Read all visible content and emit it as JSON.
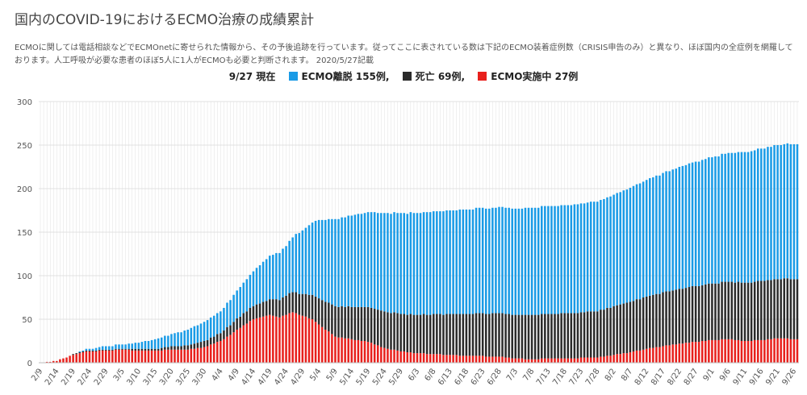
{
  "title": "国内のCOVID-19におけるECMO治療の成績累計",
  "description": "ECMOに関しては電話相談などでECMOnetに寄せられた情報から、その予後追跡を行っています。従ってここに表されている数は下記のECMO装着症例数（CRISIS申告のみ）と異なり、ほぼ国内の全症例を網羅しております。人工呼吸が必要な患者のほぼ5人に1人がECMOも必要と判断されます。 2020/5/27記載",
  "legend": {
    "date": "9/27 現在",
    "items": [
      {
        "label": "ECMO離脱 155例,",
        "color": "#1a9be6"
      },
      {
        "label": "死亡 69例,",
        "color": "#2b2b2b"
      },
      {
        "label": "ECMO実施中 27例",
        "color": "#e8201c"
      }
    ]
  },
  "colors": {
    "weaned": "#1a9be6",
    "death": "#2b2b2b",
    "ongoing": "#e8201c",
    "grid": "#e0e0e0",
    "axis": "#bdbdbd"
  },
  "chart_data": {
    "type": "bar",
    "stacked": true,
    "ylim": [
      0,
      300
    ],
    "yticks": [
      0,
      50,
      100,
      150,
      200,
      250,
      300
    ],
    "grid": true,
    "x_start_date": "2020-02-09",
    "x_end_date": "2020-09-27",
    "xtick_labels": [
      "2/9",
      "2/14",
      "2/19",
      "2/24",
      "2/29",
      "3/5",
      "3/10",
      "3/15",
      "3/20",
      "3/25",
      "3/30",
      "4/4",
      "4/9",
      "4/14",
      "4/19",
      "4/24",
      "4/29",
      "5/4",
      "5/9",
      "5/14",
      "5/19",
      "5/24",
      "5/29",
      "6/3",
      "6/8",
      "6/13",
      "6/18",
      "6/23",
      "6/28",
      "7/3",
      "7/8",
      "7/13",
      "7/18",
      "7/23",
      "7/28",
      "8/2",
      "8/7",
      "8/12",
      "8/17",
      "8/22",
      "8/27",
      "9/1",
      "9/6",
      "9/11",
      "9/16",
      "9/21",
      "9/26"
    ],
    "series_keypoints": [
      {
        "name": "ECMO実施中",
        "color": "#e8201c",
        "points": [
          [
            "2020-02-09",
            0
          ],
          [
            "2020-02-12",
            1
          ],
          [
            "2020-02-14",
            2
          ],
          [
            "2020-02-16",
            5
          ],
          [
            "2020-02-19",
            9
          ],
          [
            "2020-02-22",
            12
          ],
          [
            "2020-02-24",
            13
          ],
          [
            "2020-02-29",
            14
          ],
          [
            "2020-03-05",
            15
          ],
          [
            "2020-03-10",
            14
          ],
          [
            "2020-03-15",
            14
          ],
          [
            "2020-03-20",
            15
          ],
          [
            "2020-03-25",
            15
          ],
          [
            "2020-03-30",
            18
          ],
          [
            "2020-04-04",
            25
          ],
          [
            "2020-04-07",
            32
          ],
          [
            "2020-04-09",
            38
          ],
          [
            "2020-04-14",
            50
          ],
          [
            "2020-04-19",
            55
          ],
          [
            "2020-04-22",
            52
          ],
          [
            "2020-04-26",
            58
          ],
          [
            "2020-04-29",
            54
          ],
          [
            "2020-05-02",
            50
          ],
          [
            "2020-05-04",
            44
          ],
          [
            "2020-05-09",
            30
          ],
          [
            "2020-05-14",
            27
          ],
          [
            "2020-05-19",
            24
          ],
          [
            "2020-05-24",
            17
          ],
          [
            "2020-05-29",
            13
          ],
          [
            "2020-06-03",
            11
          ],
          [
            "2020-06-08",
            10
          ],
          [
            "2020-06-13",
            9
          ],
          [
            "2020-06-18",
            8
          ],
          [
            "2020-06-28",
            7
          ],
          [
            "2020-07-03",
            5
          ],
          [
            "2020-07-08",
            4
          ],
          [
            "2020-07-13",
            5
          ],
          [
            "2020-07-18",
            5
          ],
          [
            "2020-07-28",
            6
          ],
          [
            "2020-08-02",
            9
          ],
          [
            "2020-08-07",
            12
          ],
          [
            "2020-08-12",
            16
          ],
          [
            "2020-08-17",
            19
          ],
          [
            "2020-08-22",
            22
          ],
          [
            "2020-08-27",
            24
          ],
          [
            "2020-09-01",
            26
          ],
          [
            "2020-09-06",
            27
          ],
          [
            "2020-09-11",
            25
          ],
          [
            "2020-09-16",
            26
          ],
          [
            "2020-09-21",
            28
          ],
          [
            "2020-09-27",
            27
          ]
        ]
      },
      {
        "name": "死亡",
        "color": "#2b2b2b",
        "points": [
          [
            "2020-02-09",
            0
          ],
          [
            "2020-02-29",
            1
          ],
          [
            "2020-03-15",
            2
          ],
          [
            "2020-03-25",
            5
          ],
          [
            "2020-03-30",
            7
          ],
          [
            "2020-04-04",
            9
          ],
          [
            "2020-04-09",
            13
          ],
          [
            "2020-04-14",
            15
          ],
          [
            "2020-04-19",
            18
          ],
          [
            "2020-04-24",
            22
          ],
          [
            "2020-04-29",
            25
          ],
          [
            "2020-05-04",
            30
          ],
          [
            "2020-05-09",
            35
          ],
          [
            "2020-05-14",
            37
          ],
          [
            "2020-05-19",
            40
          ],
          [
            "2020-05-24",
            42
          ],
          [
            "2020-05-29",
            43
          ],
          [
            "2020-06-03",
            44
          ],
          [
            "2020-06-13",
            47
          ],
          [
            "2020-06-28",
            50
          ],
          [
            "2020-07-13",
            51
          ],
          [
            "2020-07-28",
            53
          ],
          [
            "2020-08-02",
            56
          ],
          [
            "2020-08-12",
            60
          ],
          [
            "2020-08-22",
            63
          ],
          [
            "2020-09-01",
            65
          ],
          [
            "2020-09-11",
            67
          ],
          [
            "2020-09-27",
            69
          ]
        ]
      },
      {
        "name": "ECMO離脱",
        "color": "#1a9be6",
        "points": [
          [
            "2020-02-09",
            0
          ],
          [
            "2020-02-19",
            0
          ],
          [
            "2020-02-24",
            2
          ],
          [
            "2020-02-29",
            4
          ],
          [
            "2020-03-05",
            5
          ],
          [
            "2020-03-10",
            7
          ],
          [
            "2020-03-15",
            11
          ],
          [
            "2020-03-20",
            14
          ],
          [
            "2020-03-25",
            18
          ],
          [
            "2020-03-30",
            22
          ],
          [
            "2020-04-04",
            25
          ],
          [
            "2020-04-09",
            32
          ],
          [
            "2020-04-14",
            40
          ],
          [
            "2020-04-19",
            50
          ],
          [
            "2020-04-24",
            57
          ],
          [
            "2020-04-29",
            73
          ],
          [
            "2020-05-04",
            90
          ],
          [
            "2020-05-09",
            100
          ],
          [
            "2020-05-14",
            105
          ],
          [
            "2020-05-19",
            109
          ],
          [
            "2020-05-24",
            113
          ],
          [
            "2020-05-29",
            116
          ],
          [
            "2020-06-03",
            117
          ],
          [
            "2020-06-08",
            118
          ],
          [
            "2020-06-13",
            119
          ],
          [
            "2020-06-18",
            120
          ],
          [
            "2020-06-23",
            121
          ],
          [
            "2020-07-03",
            122
          ],
          [
            "2020-07-13",
            124
          ],
          [
            "2020-07-18",
            124
          ],
          [
            "2020-07-23",
            125
          ],
          [
            "2020-07-28",
            126
          ],
          [
            "2020-08-02",
            128
          ],
          [
            "2020-08-07",
            131
          ],
          [
            "2020-08-12",
            134
          ],
          [
            "2020-08-17",
            137
          ],
          [
            "2020-08-22",
            140
          ],
          [
            "2020-08-27",
            143
          ],
          [
            "2020-09-01",
            145
          ],
          [
            "2020-09-06",
            148
          ],
          [
            "2020-09-11",
            150
          ],
          [
            "2020-09-16",
            152
          ],
          [
            "2020-09-21",
            154
          ],
          [
            "2020-09-27",
            155
          ]
        ]
      }
    ]
  }
}
